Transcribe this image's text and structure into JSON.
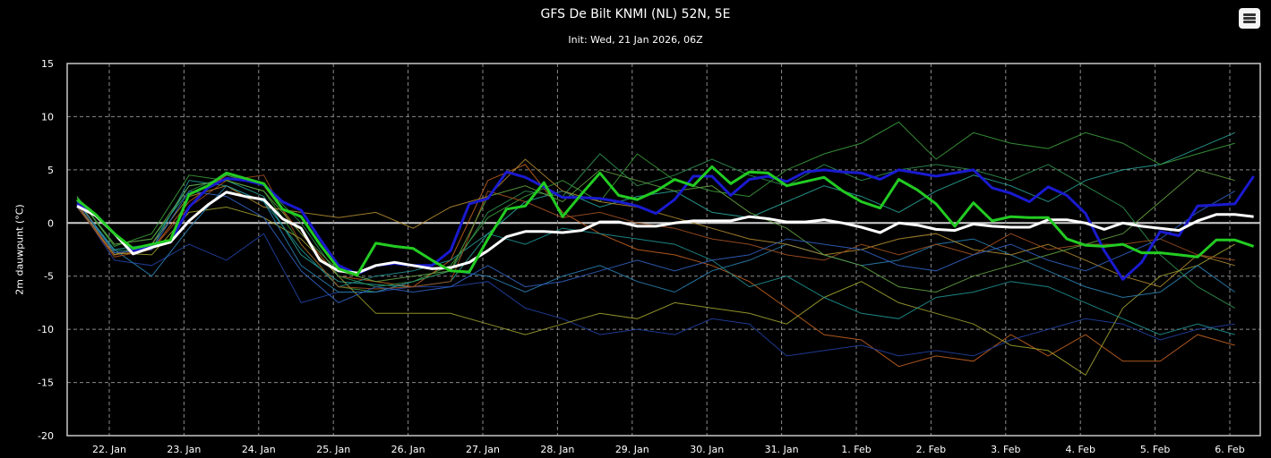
{
  "header": {
    "title": "GFS De Bilt KNMI (NL) 52N, 5E",
    "subtitle": "Init: Wed, 21 Jan 2026, 06Z",
    "menu_icon": "hamburger-menu-icon"
  },
  "chart_data": {
    "type": "line",
    "title": "GFS De Bilt KNMI (NL) 52N, 5E",
    "subtitle": "Init: Wed, 21 Jan 2026, 06Z",
    "ylabel": "2m dauwpunt (°C)",
    "xlabel": "",
    "ylim": [
      -20,
      15
    ],
    "yticks": [
      15,
      10,
      5,
      0,
      -5,
      -10,
      -15,
      -20
    ],
    "xticks": [
      "22. Jan",
      "23. Jan",
      "24. Jan",
      "25. Jan",
      "26. Jan",
      "27. Jan",
      "28. Jan",
      "29. Jan",
      "30. Jan",
      "31. Jan",
      "1. Feb",
      "2. Feb",
      "3. Feb",
      "4. Feb",
      "5. Feb",
      "6. Feb"
    ],
    "grid": true,
    "background": "#000000",
    "x_start": "21 Jan 2026 12Z",
    "main_step_hours": 6,
    "member_step_hours": 12,
    "main_series": [
      {
        "role": "mean",
        "color": "#ffffff",
        "values": [
          1.6,
          0.7,
          -1.0,
          -2.9,
          -2.3,
          -1.8,
          0.2,
          1.7,
          2.9,
          2.5,
          2.2,
          0.4,
          -0.5,
          -3.5,
          -4.5,
          -4.7,
          -4.0,
          -3.7,
          -4.0,
          -4.3,
          -4.2,
          -3.7,
          -2.6,
          -1.3,
          -0.8,
          -0.8,
          -0.9,
          -0.7,
          0.1,
          0.1,
          -0.3,
          -0.3,
          0.0,
          0.2,
          0.2,
          0.2,
          0.6,
          0.4,
          0.1,
          0.1,
          0.3,
          0.0,
          -0.4,
          -0.9,
          0.0,
          -0.2,
          -0.6,
          -0.7,
          -0.1,
          -0.3,
          -0.4,
          -0.4,
          0.3,
          0.3,
          0.0,
          -0.6,
          0.0,
          -0.3,
          -0.5,
          -0.7,
          0.2,
          0.8,
          0.8,
          0.6
        ]
      },
      {
        "role": "control",
        "color": "#1a1ad0",
        "values": [
          1.8,
          0.8,
          -1.0,
          -2.6,
          -2.2,
          -1.8,
          1.5,
          3.3,
          4.2,
          4.0,
          3.6,
          2.0,
          1.2,
          -1.5,
          -4.0,
          -4.8,
          -4.0,
          -3.8,
          -4.0,
          -4.0,
          -2.6,
          1.8,
          2.3,
          4.8,
          4.3,
          3.4,
          2.4,
          2.4,
          2.3,
          2.0,
          1.6,
          0.9,
          2.2,
          4.4,
          4.4,
          2.6,
          4.1,
          4.4,
          3.9,
          4.8,
          5.0,
          4.8,
          4.7,
          4.1,
          5.0,
          4.7,
          4.4,
          4.7,
          5.0,
          3.3,
          2.8,
          2.0,
          3.4,
          2.6,
          0.9,
          -2.6,
          -5.3,
          -3.7,
          -0.8,
          -1.2,
          1.6,
          1.7,
          1.8,
          4.4
        ]
      },
      {
        "role": "operational",
        "color": "#22cc22",
        "values": [
          2.2,
          0.8,
          -1.0,
          -2.4,
          -2.0,
          -1.6,
          2.7,
          3.5,
          4.7,
          4.2,
          3.7,
          1.3,
          0.6,
          -2.0,
          -4.3,
          -4.9,
          -1.9,
          -2.2,
          -2.4,
          -3.5,
          -4.5,
          -4.6,
          -1.5,
          1.3,
          1.6,
          3.8,
          0.6,
          2.7,
          4.7,
          2.6,
          2.2,
          3.0,
          4.1,
          3.5,
          5.3,
          3.7,
          4.8,
          4.7,
          3.5,
          3.9,
          4.3,
          3.0,
          2.0,
          1.4,
          4.1,
          3.1,
          1.8,
          -0.3,
          1.9,
          0.2,
          0.6,
          0.5,
          0.5,
          -1.5,
          -2.1,
          -2.2,
          -2.0,
          -2.8,
          -2.8,
          -3.0,
          -3.2,
          -1.6,
          -1.6,
          -2.2
        ]
      }
    ],
    "members": [
      {
        "color": "#2aa198",
        "values": [
          2.0,
          -2.5,
          -2.0,
          3.5,
          4.0,
          2.5,
          -3.0,
          -5.5,
          -5.8,
          -6.0,
          -5.5,
          -1.0,
          2.0,
          3.0,
          1.5,
          2.5,
          3.0,
          1.0,
          0.5,
          2.0,
          3.5,
          2.5,
          1.0,
          3.0,
          4.5,
          3.5,
          2.0,
          4.0,
          5.0,
          5.5,
          7.0,
          8.5
        ]
      },
      {
        "color": "#3a9a3a",
        "values": [
          2.5,
          -2.2,
          -1.0,
          4.5,
          4.0,
          3.0,
          -2.0,
          -6.0,
          -6.5,
          -5.5,
          -4.0,
          0.5,
          2.5,
          4.0,
          2.0,
          6.5,
          4.0,
          3.0,
          2.5,
          5.0,
          6.5,
          7.5,
          9.5,
          6.0,
          8.5,
          7.5,
          7.0,
          8.5,
          7.5,
          5.5,
          6.5,
          7.5
        ]
      },
      {
        "color": "#c06020",
        "values": [
          1.5,
          -3.0,
          -2.5,
          2.0,
          4.5,
          3.5,
          -1.0,
          -5.0,
          -5.5,
          -6.0,
          -3.5,
          4.0,
          5.5,
          1.0,
          -1.0,
          -2.5,
          -3.0,
          -4.0,
          -5.5,
          -8.0,
          -10.5,
          -11.0,
          -13.5,
          -12.5,
          -13.0,
          -10.5,
          -12.5,
          -10.5,
          -13.0,
          -13.0,
          -10.5,
          -11.5
        ]
      },
      {
        "color": "#2040a0",
        "values": [
          1.8,
          -3.5,
          -4.0,
          -2.0,
          -3.5,
          -1.0,
          -7.5,
          -6.5,
          -6.5,
          -6.0,
          -6.0,
          -5.5,
          -8.0,
          -9.0,
          -10.5,
          -10.0,
          -10.5,
          -9.0,
          -9.5,
          -12.5,
          -12.0,
          -11.5,
          -12.5,
          -12.0,
          -12.5,
          -11.0,
          -10.0,
          -9.0,
          -9.5,
          -11.0,
          -10.0,
          -9.5
        ]
      },
      {
        "color": "#a0a030",
        "values": [
          2.2,
          -2.8,
          -3.0,
          1.0,
          1.5,
          0.5,
          -1.5,
          -5.0,
          -8.5,
          -8.5,
          -8.5,
          -9.5,
          -10.5,
          -9.5,
          -8.5,
          -9.0,
          -7.5,
          -8.0,
          -8.5,
          -9.5,
          -7.0,
          -5.5,
          -7.5,
          -8.5,
          -9.5,
          -11.5,
          -12.0,
          -14.3,
          -8.0,
          -5.0,
          -4.0,
          -2.0
        ]
      },
      {
        "color": "#2a80b0",
        "values": [
          1.5,
          -2.5,
          -5.0,
          -0.5,
          3.5,
          2.0,
          -4.0,
          -6.5,
          -6.5,
          -5.5,
          -4.5,
          -5.0,
          -6.5,
          -5.0,
          -4.0,
          -5.5,
          -6.5,
          -4.5,
          -3.5,
          -2.0,
          -3.0,
          -4.0,
          -3.5,
          -2.0,
          -1.5,
          -3.0,
          -4.5,
          -6.0,
          -7.0,
          -6.5,
          -4.0,
          -6.5
        ]
      },
      {
        "color": "#2f8f4f",
        "values": [
          2.5,
          -2.0,
          -1.5,
          3.0,
          4.5,
          3.5,
          0.0,
          -5.0,
          -6.0,
          -5.5,
          -4.5,
          1.0,
          3.0,
          2.5,
          6.5,
          3.5,
          4.5,
          6.0,
          4.5,
          3.5,
          5.5,
          4.0,
          5.0,
          5.5,
          5.0,
          4.0,
          5.5,
          3.5,
          1.5,
          -3.0,
          -6.0,
          -8.0
        ]
      },
      {
        "color": "#b08a30",
        "values": [
          1.8,
          -3.0,
          -2.0,
          2.5,
          3.5,
          1.5,
          1.0,
          0.5,
          1.0,
          -0.5,
          1.5,
          2.5,
          6.0,
          3.0,
          2.0,
          1.5,
          0.5,
          -0.5,
          -1.5,
          -2.0,
          -3.0,
          -2.5,
          -1.5,
          -1.0,
          -2.5,
          -3.0,
          -2.0,
          -3.5,
          -5.0,
          -6.0,
          -3.0,
          -4.0
        ]
      },
      {
        "color": "#1f9090",
        "values": [
          2.0,
          -2.6,
          -2.5,
          4.0,
          3.5,
          2.0,
          -2.5,
          -6.0,
          -5.0,
          -4.5,
          -3.5,
          -1.0,
          -2.0,
          -0.5,
          -1.0,
          -1.5,
          -2.0,
          -3.5,
          -6.0,
          -5.0,
          -7.0,
          -8.5,
          -9.0,
          -7.0,
          -6.5,
          -5.5,
          -6.0,
          -7.5,
          -9.0,
          -10.5,
          -9.5,
          -10.5
        ]
      },
      {
        "color": "#a05020",
        "values": [
          1.6,
          -3.2,
          -2.5,
          1.5,
          4.0,
          4.5,
          -2.0,
          -6.0,
          -6.2,
          -6.0,
          -5.5,
          3.0,
          2.0,
          0.5,
          1.0,
          0.0,
          -0.5,
          -1.5,
          -2.0,
          -3.0,
          -3.5,
          -2.0,
          -3.0,
          -2.0,
          -3.0,
          -1.0,
          -2.5,
          -2.0,
          -2.0,
          -1.5,
          -3.0,
          -3.5
        ]
      },
      {
        "color": "#60a040",
        "values": [
          2.4,
          -2.0,
          -1.5,
          3.5,
          4.0,
          3.0,
          -1.0,
          -4.5,
          -5.5,
          -5.0,
          -4.5,
          2.5,
          3.5,
          2.0,
          5.0,
          4.0,
          3.0,
          3.5,
          1.0,
          -0.5,
          -3.0,
          -4.0,
          -6.0,
          -6.5,
          -5.0,
          -4.0,
          -3.0,
          -2.0,
          -1.0,
          2.0,
          5.0,
          4.0
        ]
      },
      {
        "color": "#3060c0",
        "values": [
          2.0,
          -2.8,
          -2.5,
          3.0,
          2.5,
          0.5,
          -4.5,
          -7.5,
          -6.0,
          -6.5,
          -6.0,
          -4.0,
          -6.0,
          -5.5,
          -4.5,
          -3.5,
          -4.5,
          -3.5,
          -3.0,
          -1.5,
          -2.0,
          -2.5,
          -4.0,
          -4.5,
          -3.0,
          -2.0,
          -3.5,
          -4.5,
          -3.0,
          -1.5,
          1.0,
          3.0
        ]
      }
    ]
  }
}
